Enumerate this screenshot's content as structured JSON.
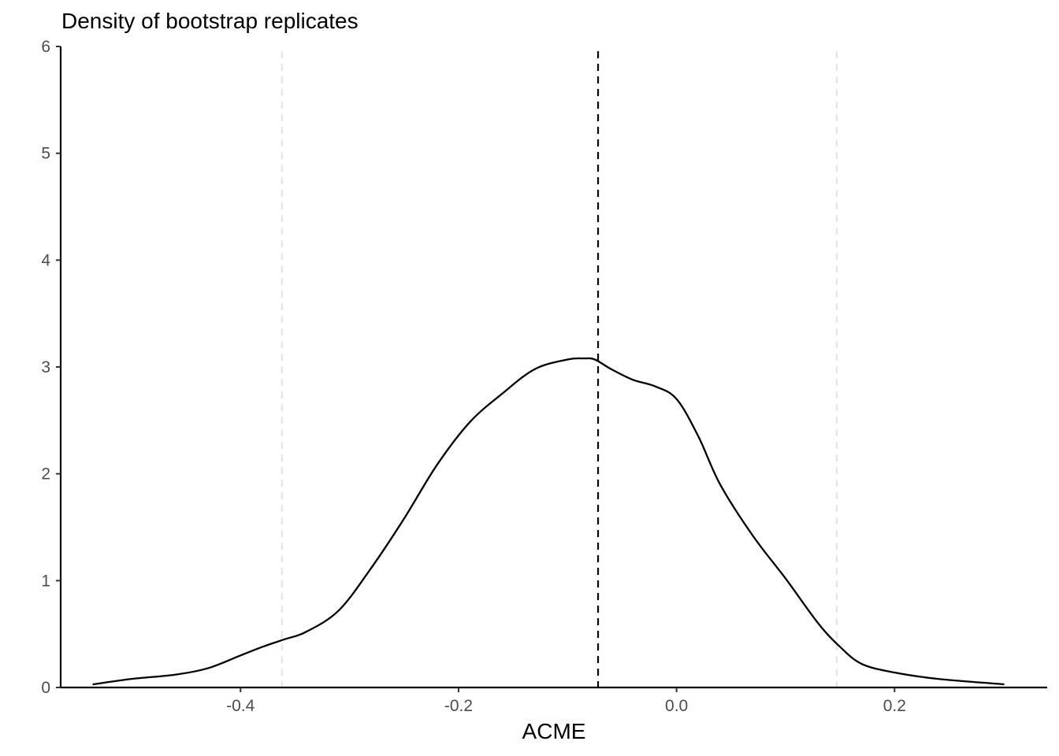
{
  "chart_data": {
    "type": "line",
    "title": "Density of bootstrap replicates",
    "xlabel": "ACME",
    "ylabel": "",
    "xlim": [
      -0.565,
      0.34
    ],
    "ylim": [
      0,
      6
    ],
    "x_ticks": [
      {
        "value": -0.4,
        "label": "-0.4"
      },
      {
        "value": -0.2,
        "label": "-0.2"
      },
      {
        "value": 0.0,
        "label": "0.0"
      },
      {
        "value": 0.2,
        "label": "0.2"
      }
    ],
    "y_ticks": [
      {
        "value": 0,
        "label": "0"
      },
      {
        "value": 1,
        "label": "1"
      },
      {
        "value": 2,
        "label": "2"
      },
      {
        "value": 3,
        "label": "3"
      },
      {
        "value": 4,
        "label": "4"
      },
      {
        "value": 5,
        "label": "5"
      },
      {
        "value": 6,
        "label": "6"
      }
    ],
    "grid": false,
    "series": [
      {
        "color": "#000000",
        "x": [
          -0.535,
          -0.5,
          -0.46,
          -0.43,
          -0.4,
          -0.38,
          -0.36,
          -0.34,
          -0.31,
          -0.28,
          -0.25,
          -0.22,
          -0.19,
          -0.16,
          -0.13,
          -0.1,
          -0.085,
          -0.075,
          -0.06,
          -0.04,
          -0.02,
          0.0,
          0.02,
          0.04,
          0.07,
          0.1,
          0.13,
          0.15,
          0.17,
          0.2,
          0.24,
          0.3
        ],
        "y": [
          0.03,
          0.08,
          0.12,
          0.18,
          0.3,
          0.38,
          0.45,
          0.52,
          0.72,
          1.12,
          1.58,
          2.08,
          2.48,
          2.75,
          2.98,
          3.07,
          3.08,
          3.07,
          2.98,
          2.88,
          2.82,
          2.7,
          2.35,
          1.9,
          1.42,
          1.02,
          0.6,
          0.38,
          0.22,
          0.14,
          0.08,
          0.03
        ]
      }
    ],
    "reference_lines": [
      {
        "x": -0.072,
        "color": "#000000",
        "style": "dashed",
        "role": "estimate"
      },
      {
        "x": -0.362,
        "color": "#e5e5e5",
        "style": "dashed",
        "role": "lower-bound"
      },
      {
        "x": 0.147,
        "color": "#e5e5e5",
        "style": "dashed",
        "role": "upper-bound"
      }
    ]
  }
}
